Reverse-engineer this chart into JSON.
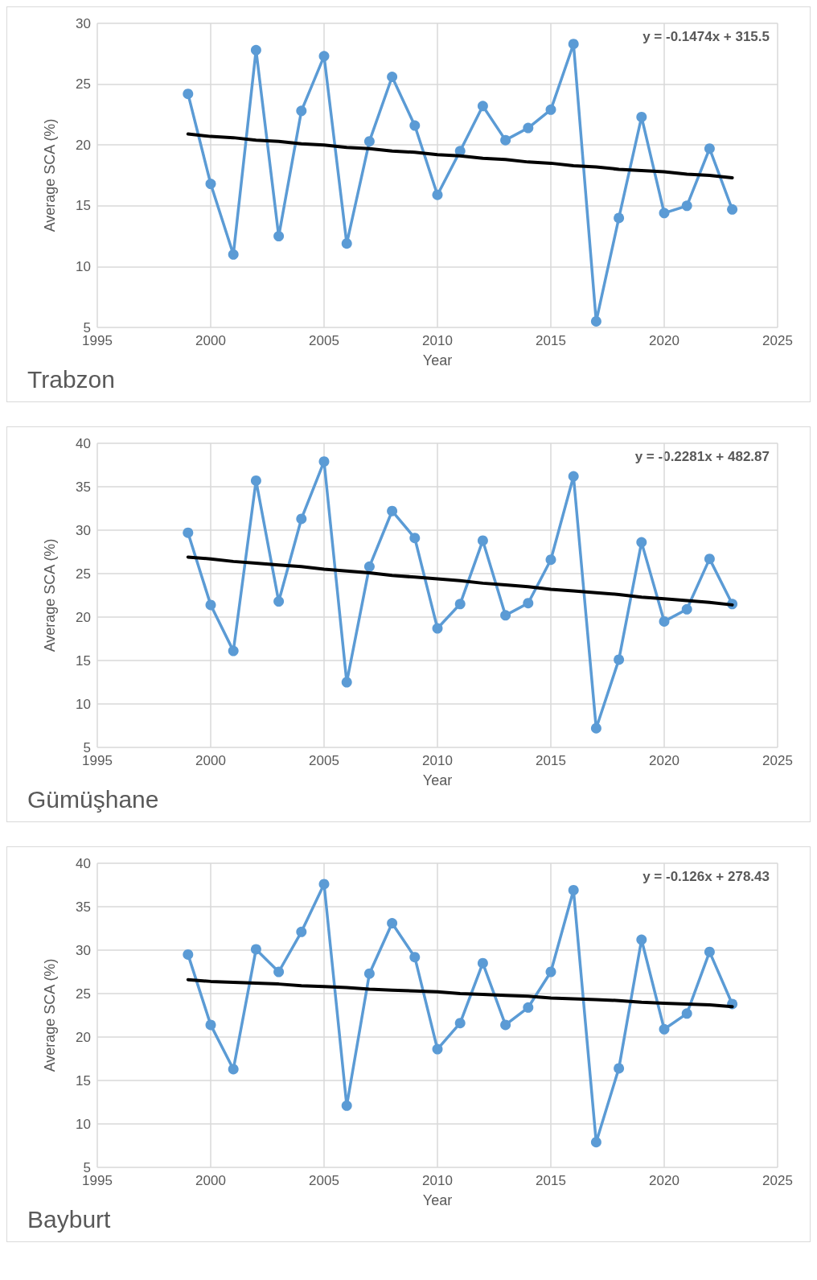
{
  "chart_data": [
    {
      "type": "line",
      "title": "Trabzon",
      "xlabel": "Year",
      "ylabel": "Average SCA (%)",
      "annotations": [
        "y = -0.1474x + 315.5"
      ],
      "x": [
        1999,
        2000,
        2001,
        2002,
        2003,
        2004,
        2005,
        2006,
        2007,
        2008,
        2009,
        2010,
        2011,
        2012,
        2013,
        2014,
        2015,
        2016,
        2017,
        2018,
        2019,
        2020,
        2021,
        2022,
        2023
      ],
      "xlim": [
        1995,
        2025
      ],
      "xticks": [
        1995,
        2000,
        2005,
        2010,
        2015,
        2020,
        2025
      ],
      "ylim": [
        5,
        30
      ],
      "yticks": [
        5,
        10,
        15,
        20,
        25,
        30
      ],
      "grid": true,
      "series": [
        {
          "color": "#5b9bd5",
          "marker": "circle",
          "values": [
            24.2,
            16.8,
            11.0,
            27.8,
            12.5,
            22.8,
            27.3,
            11.9,
            20.3,
            25.6,
            21.6,
            15.9,
            19.5,
            23.2,
            20.4,
            21.4,
            22.9,
            28.3,
            5.5,
            14.0,
            22.3,
            14.4,
            15.0,
            19.7,
            14.7
          ]
        },
        {
          "type": "line",
          "color": "#000000",
          "marker": "none",
          "values": [
            20.9,
            20.7,
            20.6,
            20.4,
            20.3,
            20.1,
            20.0,
            19.8,
            19.7,
            19.5,
            19.4,
            19.2,
            19.1,
            18.9,
            18.8,
            18.6,
            18.5,
            18.3,
            18.2,
            18.0,
            17.9,
            17.8,
            17.6,
            17.5,
            17.3
          ]
        }
      ]
    },
    {
      "type": "line",
      "title": "Gümüşhane",
      "xlabel": "Year",
      "ylabel": "Average SCA (%)",
      "annotations": [
        "y = -0.2281x + 482.87"
      ],
      "x": [
        1999,
        2000,
        2001,
        2002,
        2003,
        2004,
        2005,
        2006,
        2007,
        2008,
        2009,
        2010,
        2011,
        2012,
        2013,
        2014,
        2015,
        2016,
        2017,
        2018,
        2019,
        2020,
        2021,
        2022,
        2023
      ],
      "xlim": [
        1995,
        2025
      ],
      "xticks": [
        1995,
        2000,
        2005,
        2010,
        2015,
        2020,
        2025
      ],
      "ylim": [
        5,
        40
      ],
      "yticks": [
        5,
        10,
        15,
        20,
        25,
        30,
        35,
        40
      ],
      "grid": true,
      "series": [
        {
          "color": "#5b9bd5",
          "marker": "circle",
          "values": [
            29.7,
            21.4,
            16.1,
            35.7,
            21.8,
            31.3,
            37.9,
            12.5,
            25.8,
            32.2,
            29.1,
            18.7,
            21.5,
            28.8,
            20.2,
            21.6,
            26.6,
            36.2,
            7.2,
            15.1,
            28.6,
            19.5,
            20.9,
            26.7,
            21.5
          ]
        },
        {
          "type": "line",
          "color": "#000000",
          "marker": "none",
          "values": [
            26.9,
            26.7,
            26.4,
            26.2,
            26.0,
            25.8,
            25.5,
            25.3,
            25.1,
            24.8,
            24.6,
            24.4,
            24.2,
            23.9,
            23.7,
            23.5,
            23.2,
            23.0,
            22.8,
            22.6,
            22.3,
            22.1,
            21.9,
            21.7,
            21.4
          ]
        }
      ]
    },
    {
      "type": "line",
      "title": "Bayburt",
      "xlabel": "Year",
      "ylabel": "Average SCA (%)",
      "annotations": [
        "y = -0.126x + 278.43"
      ],
      "x": [
        1999,
        2000,
        2001,
        2002,
        2003,
        2004,
        2005,
        2006,
        2007,
        2008,
        2009,
        2010,
        2011,
        2012,
        2013,
        2014,
        2015,
        2016,
        2017,
        2018,
        2019,
        2020,
        2021,
        2022,
        2023
      ],
      "xlim": [
        1995,
        2025
      ],
      "xticks": [
        1995,
        2000,
        2005,
        2010,
        2015,
        2020,
        2025
      ],
      "ylim": [
        5,
        40
      ],
      "yticks": [
        5,
        10,
        15,
        20,
        25,
        30,
        35,
        40
      ],
      "grid": true,
      "series": [
        {
          "color": "#5b9bd5",
          "marker": "circle",
          "values": [
            29.5,
            21.4,
            16.3,
            30.1,
            27.5,
            32.1,
            37.6,
            12.1,
            27.3,
            33.1,
            29.2,
            18.6,
            21.6,
            28.5,
            21.4,
            23.4,
            27.5,
            36.9,
            7.9,
            16.4,
            31.2,
            20.9,
            22.7,
            29.8,
            23.8
          ]
        },
        {
          "type": "line",
          "color": "#000000",
          "marker": "none",
          "values": [
            26.6,
            26.4,
            26.3,
            26.2,
            26.1,
            25.9,
            25.8,
            25.7,
            25.5,
            25.4,
            25.3,
            25.2,
            25.0,
            24.9,
            24.8,
            24.7,
            24.5,
            24.4,
            24.3,
            24.2,
            24.0,
            23.9,
            23.8,
            23.7,
            23.5
          ]
        }
      ]
    }
  ]
}
